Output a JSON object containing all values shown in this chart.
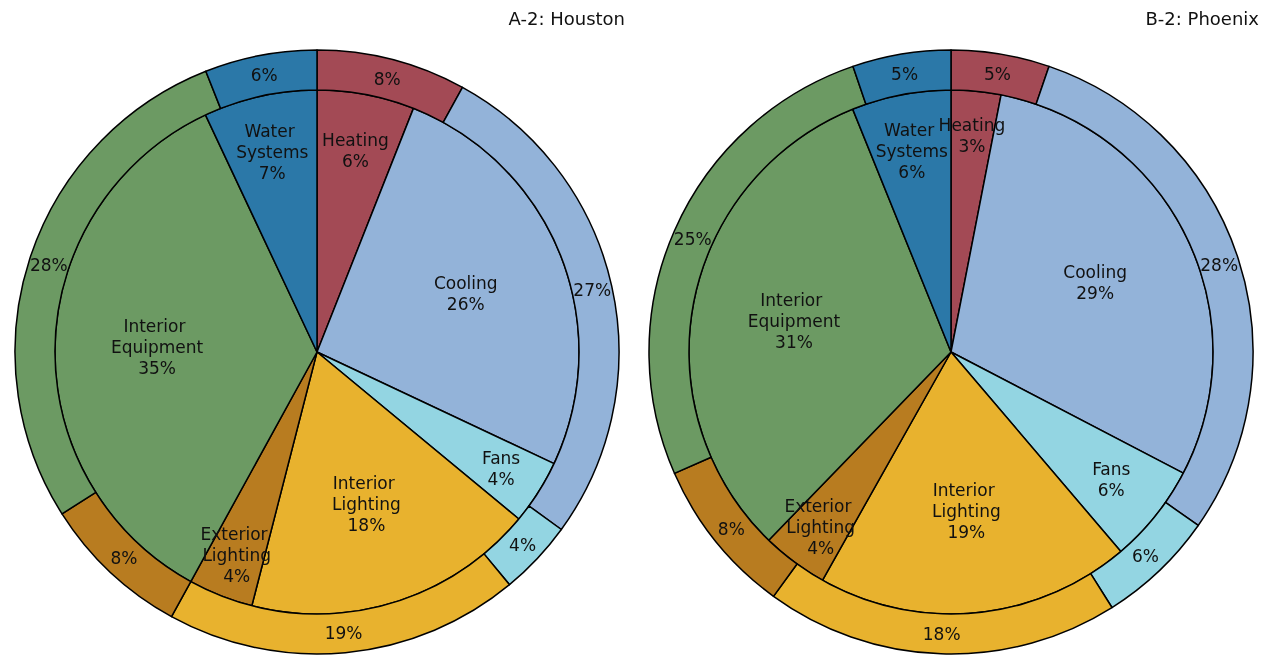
{
  "chart_data": [
    {
      "type": "pie",
      "title": "A-2: Houston",
      "categories": [
        "Heating",
        "Cooling",
        "Fans",
        "Interior Lighting",
        "Exterior Lighting",
        "Interior Equipment",
        "Water Systems"
      ],
      "colors": [
        "#a34a55",
        "#93b3d9",
        "#93d5e2",
        "#e8b22e",
        "#b87c20",
        "#6c9a63",
        "#2b78a8"
      ],
      "data_labels": true,
      "series": [
        {
          "values": [
            6,
            26,
            4,
            18,
            4,
            35,
            7
          ],
          "value_labels": [
            "6%",
            "26%",
            "4%",
            "18%",
            "4%",
            "35%",
            "7%"
          ]
        },
        {
          "values": [
            8,
            27,
            4,
            19,
            8,
            28,
            6
          ],
          "value_labels": [
            "8%",
            "27%",
            "4%",
            "19%",
            "8%",
            "28%",
            "6%"
          ]
        }
      ]
    },
    {
      "type": "pie",
      "title": "B-2: Phoenix",
      "categories": [
        "Heating",
        "Cooling",
        "Fans",
        "Interior Lighting",
        "Exterior Lighting",
        "Interior Equipment",
        "Water Systems"
      ],
      "colors": [
        "#a34a55",
        "#93b3d9",
        "#93d5e2",
        "#e8b22e",
        "#b87c20",
        "#6c9a63",
        "#2b78a8"
      ],
      "data_labels": true,
      "series": [
        {
          "values": [
            3,
            29,
            6,
            19,
            4,
            31,
            6
          ],
          "value_labels": [
            "3%",
            "29%",
            "6%",
            "19%",
            "4%",
            "31%",
            "6%"
          ]
        },
        {
          "values": [
            5,
            28,
            6,
            18,
            8,
            25,
            5
          ],
          "value_labels": [
            "5%",
            "28%",
            "6%",
            "18%",
            "8%",
            "25%",
            "5%"
          ]
        }
      ]
    }
  ]
}
